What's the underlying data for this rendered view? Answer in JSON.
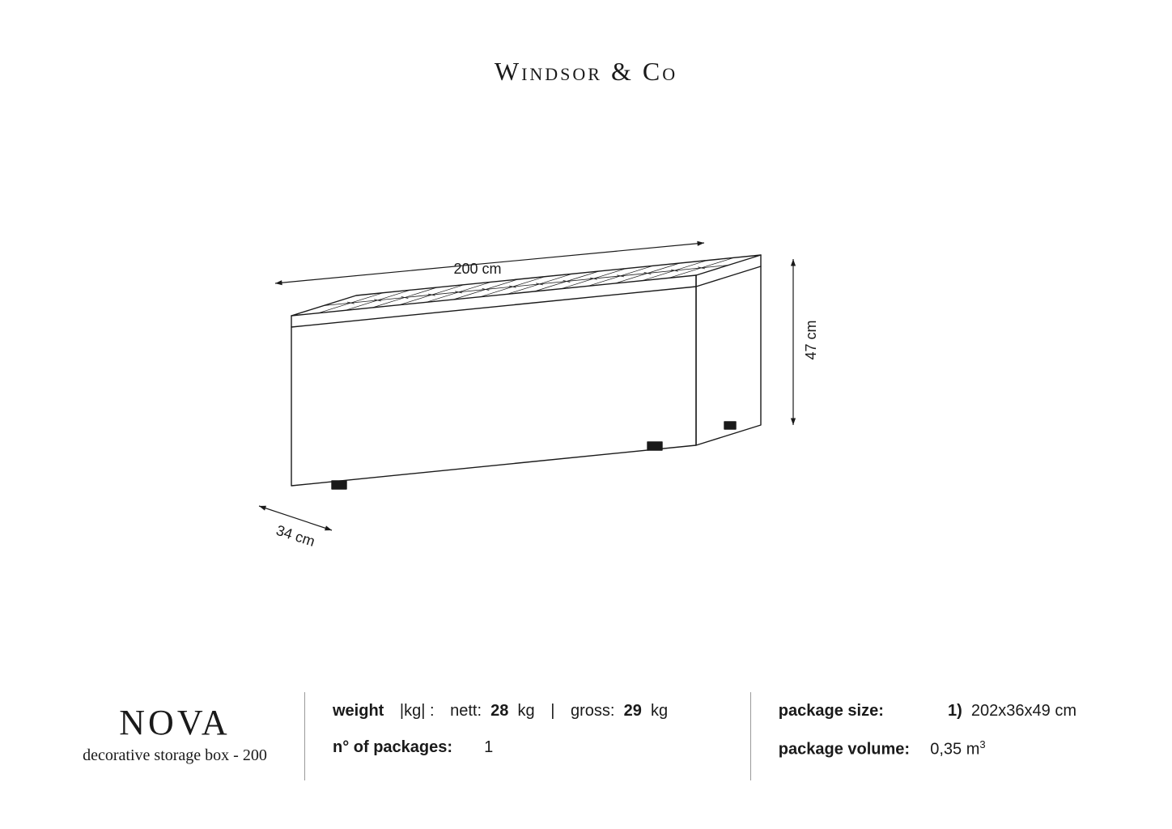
{
  "brand": "Windsor & Co",
  "product": {
    "name": "NOVA",
    "subtitle": "decorative storage box - 200"
  },
  "dimensions": {
    "width_label": "200 cm",
    "height_label": "47 cm",
    "depth_label": "34 cm"
  },
  "specs": {
    "weight_label": "weight",
    "weight_unit_hint": "|kg| :",
    "nett_label": "nett:",
    "nett_value": "28",
    "nett_unit": "kg",
    "gross_label": "gross:",
    "gross_value": "29",
    "gross_unit": "kg",
    "packages_label": "n° of packages:",
    "packages_value": "1",
    "pkg_size_label": "package size:",
    "pkg_size_prefix": "1)",
    "pkg_size_value": "202x36x49 cm",
    "pkg_vol_label": "package volume:",
    "pkg_vol_value": "0,35 m",
    "pkg_vol_exp": "3"
  },
  "drawing": {
    "stroke": "#1a1a1a",
    "stroke_width": 1.4,
    "dim_stroke_width": 1.2,
    "tufting_rows": 2,
    "tufting_cols": 15
  }
}
